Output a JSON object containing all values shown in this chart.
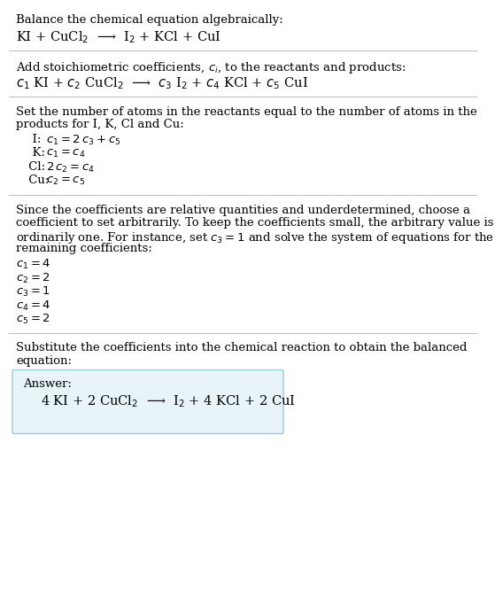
{
  "title": "Balance the chemical equation algebraically:",
  "equation1": "KI + CuCl$_2$  ⟶  I$_2$ + KCl + CuI",
  "section2_intro": "Add stoichiometric coefficients, $c_i$, to the reactants and products:",
  "equation2": "$c_1$ KI + $c_2$ CuCl$_2$  ⟶  $c_3$ I$_2$ + $c_4$ KCl + $c_5$ CuI",
  "section3_intro_line1": "Set the number of atoms in the reactants equal to the number of atoms in the",
  "section3_intro_line2": "products for I, K, Cl and Cu:",
  "atom_equations": [
    [
      "  I:",
      "$c_1 = 2\\,c_3 + c_5$"
    ],
    [
      "  K:",
      "$c_1 = c_4$"
    ],
    [
      " Cl:",
      "$2\\,c_2 = c_4$"
    ],
    [
      " Cu:",
      "$c_2 = c_5$"
    ]
  ],
  "section4_intro_lines": [
    "Since the coefficients are relative quantities and underdetermined, choose a",
    "coefficient to set arbitrarily. To keep the coefficients small, the arbitrary value is",
    "ordinarily one. For instance, set $c_3 = 1$ and solve the system of equations for the",
    "remaining coefficients:"
  ],
  "coeff_solutions": [
    "$c_1 = 4$",
    "$c_2 = 2$",
    "$c_3 = 1$",
    "$c_4 = 4$",
    "$c_5 = 2$"
  ],
  "section5_intro_line1": "Substitute the coefficients into the chemical reaction to obtain the balanced",
  "section5_intro_line2": "equation:",
  "answer_label": "Answer:",
  "answer_equation": "4 KI + 2 CuCl$_2$  ⟶  I$_2$ + 4 KCl + 2 CuI",
  "bg_color": "#ffffff",
  "text_color": "#000000",
  "answer_box_facecolor": "#e8f4f8",
  "answer_box_edgecolor": "#99ccdd",
  "separator_color": "#bbbbbb",
  "font_size_body": 9.5,
  "font_size_eq": 10.5
}
